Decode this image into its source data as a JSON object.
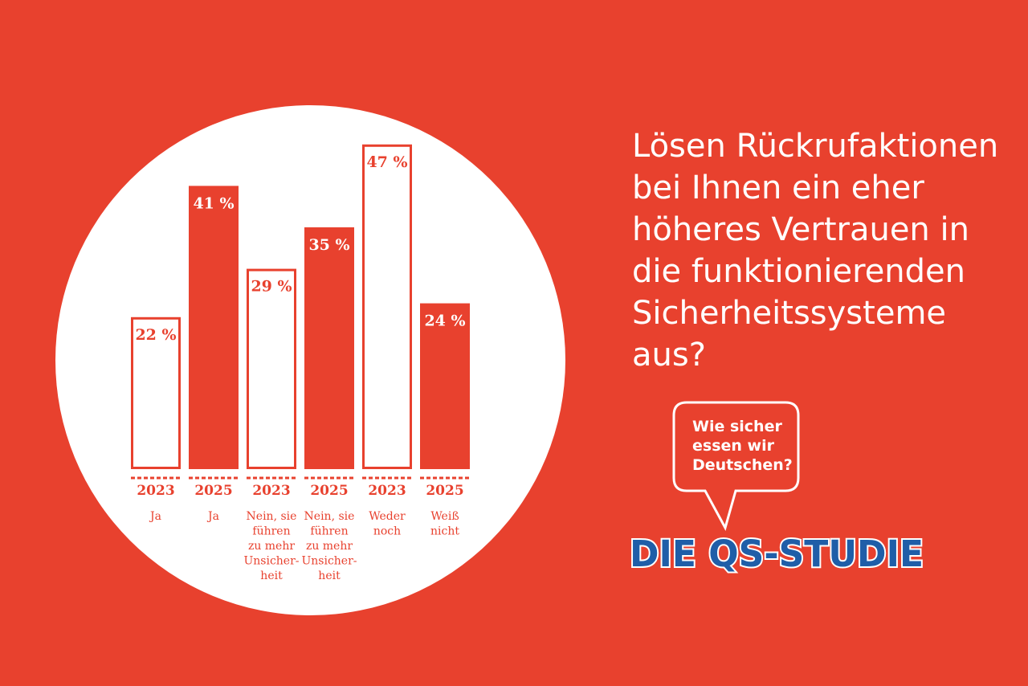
{
  "question_lines": [
    "Lösen Rückrufaktionen",
    "bei Ihnen ein eher",
    "höheres Vertrauen in",
    "die funktionierenden",
    "Sicherheitssysteme",
    "aus?"
  ],
  "logo": {
    "bubble_lines": [
      "Wie sicher",
      "essen wir",
      "Deutschen?"
    ],
    "wordmark": "DIE QS-STUDIE"
  },
  "colors": {
    "background": "#e8412e",
    "circle": "#ffffff",
    "bar_filled": "#e8412e",
    "bar_outline": "#e8412e",
    "logo_blue": "#1f5ea8"
  },
  "chart_data": {
    "type": "bar",
    "unit": "%",
    "ylim": [
      0,
      50
    ],
    "bars": [
      {
        "year": "2023",
        "category_lines": [
          "Ja"
        ],
        "value": 22,
        "label": "22 %",
        "style": "outline"
      },
      {
        "year": "2025",
        "category_lines": [
          "Ja"
        ],
        "value": 41,
        "label": "41 %",
        "style": "filled"
      },
      {
        "year": "2023",
        "category_lines": [
          "Nein, sie",
          "führen",
          "zu mehr",
          "Unsicher-",
          "heit"
        ],
        "value": 29,
        "label": "29 %",
        "style": "outline"
      },
      {
        "year": "2025",
        "category_lines": [
          "Nein, sie",
          "führen",
          "zu mehr",
          "Unsicher-",
          "heit"
        ],
        "value": 35,
        "label": "35 %",
        "style": "filled"
      },
      {
        "year": "2023",
        "category_lines": [
          "Weder",
          "noch"
        ],
        "value": 47,
        "label": "47 %",
        "style": "outline"
      },
      {
        "year": "2025",
        "category_lines": [
          "Weiß",
          "nicht"
        ],
        "value": 24,
        "label": "24 %",
        "style": "filled"
      }
    ]
  }
}
